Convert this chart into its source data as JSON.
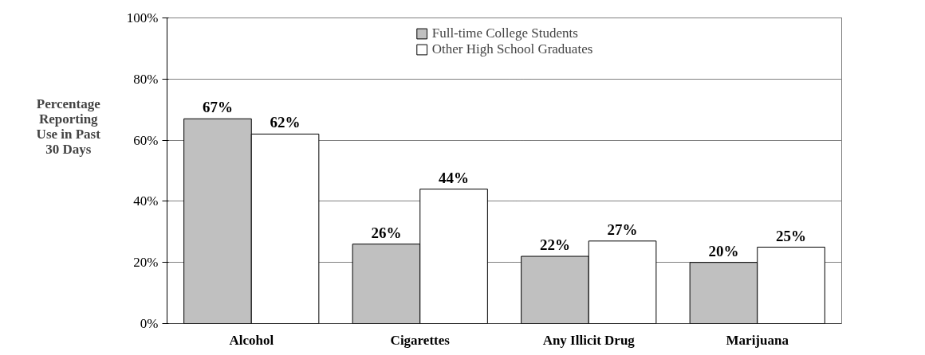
{
  "chart_data": {
    "type": "bar",
    "ylabel": "Percentage Reporting Use in Past 30 Days",
    "categories": [
      "Alcohol",
      "Cigarettes",
      "Any Illicit Drug",
      "Marijuana"
    ],
    "series": [
      {
        "name": "Full-time College Students",
        "color": "#c0c0c0",
        "values": [
          67,
          26,
          22,
          20
        ],
        "value_labels": [
          "67%",
          "26%",
          "22%",
          "20%"
        ]
      },
      {
        "name": "Other High School Graduates",
        "color": "#ffffff",
        "values": [
          62,
          44,
          27,
          25
        ],
        "value_labels": [
          "62%",
          "44%",
          "27%",
          "25%"
        ]
      }
    ],
    "ylim": [
      0,
      100
    ],
    "yticks": [
      {
        "value": 0,
        "label": "0%"
      },
      {
        "value": 20,
        "label": "20%"
      },
      {
        "value": 40,
        "label": "40%"
      },
      {
        "value": 60,
        "label": "60%"
      },
      {
        "value": 80,
        "label": "80%"
      },
      {
        "value": 100,
        "label": "100%"
      }
    ],
    "grid": "y",
    "legend": "top"
  }
}
